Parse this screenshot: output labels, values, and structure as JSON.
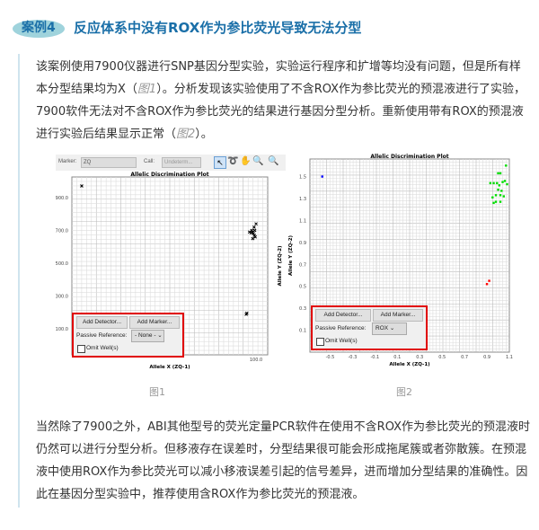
{
  "header": {
    "badge": "案例4",
    "title": "反应体系中没有ROX作为参比荧光导致无法分型"
  },
  "intro": {
    "p1": "该案例使用7900仪器进行SNP基因分型实验，实验运行程序和扩增等均没有问题，但是所有样本分型结果均为X（",
    "ref1": "图1",
    "p2": "）。分析发现该实验使用了不含ROX作为参比荧光的预混液进行了实验，7900软件无法对不含ROX作为参比荧光的结果进行基因分型分析。重新使用带有ROX的预混液进行实验后结果显示正常（",
    "ref2": "图2",
    "p3": "）。"
  },
  "figures": [
    {
      "caption": "图1",
      "toolbar": {
        "marker_label": "Marker:",
        "marker_value": "ZQ",
        "call_label": "Call:",
        "call_value": "Undeterm..."
      },
      "plot_title": "Allelic Discrimination Plot",
      "xlabel": "Allele X (ZQ-1)",
      "ylabel": "Allele Y (ZQ-2)",
      "yticks": [
        "900.0",
        "700.0",
        "500.0",
        "300.0",
        "100.0"
      ],
      "xticks": [
        "100.0"
      ],
      "panel": {
        "add_detector": "Add Detector...",
        "add_marker": "Add Marker...",
        "passive_label": "Passive Reference:",
        "passive_value": "- None -",
        "omit": "Omit Well(s)"
      },
      "chart_data": {
        "type": "scatter",
        "xlim": [
          -1023,
          171
        ],
        "ylim": [
          -59,
          1026
        ],
        "yticks": [
          900,
          700,
          500,
          300,
          100
        ],
        "xticks": [
          100
        ],
        "grid": true,
        "series": [
          {
            "color": "#000000",
            "marker": "x",
            "points": [
              [
                -963,
                971
              ],
              [
                84,
                681
              ],
              [
                79,
                690
              ],
              [
                90,
                670
              ],
              [
                74,
                700
              ],
              [
                95,
                660
              ],
              [
                70,
                685
              ],
              [
                88,
                720
              ],
              [
                100,
                740
              ],
              [
                60,
                690
              ],
              [
                80,
                650
              ],
              [
                92,
                700
              ],
              [
                40,
                188
              ],
              [
                44,
                195
              ]
            ]
          }
        ]
      }
    },
    {
      "caption": "图2",
      "plot_title": "Allelic Discrimination Plot",
      "xlabel": "Allele X (ZQ-1)",
      "ylabel": "Allele Y (ZQ-2)",
      "yticks": [
        "1.5",
        "1.3",
        "1.1",
        "0.9",
        "0.7",
        "0.5",
        "0.3",
        "0.1"
      ],
      "xticks": [
        "-0.5",
        "-0.3",
        "-0.1",
        "0.1",
        "0.3",
        "0.5",
        "0.7",
        "0.9",
        "1.1"
      ],
      "panel": {
        "add_detector": "Add Detector...",
        "add_marker": "Add Marker...",
        "passive_label": "Passive Reference:",
        "passive_value": "ROX",
        "omit": "Omit Well(s)"
      },
      "chart_data": {
        "type": "scatter",
        "xlim": [
          -0.68,
          1.1
        ],
        "ylim": [
          -0.1,
          1.66
        ],
        "yticks": [
          1.5,
          1.3,
          1.1,
          0.9,
          0.7,
          0.5,
          0.3,
          0.1
        ],
        "xticks": [
          -0.5,
          -0.3,
          -0.1,
          0.1,
          0.3,
          0.5,
          0.7,
          0.9,
          1.1
        ],
        "grid": true,
        "series": [
          {
            "color": "#0000ff",
            "points": [
              [
                -0.57,
                1.5
              ]
            ]
          },
          {
            "color": "#00dd00",
            "points": [
              [
                1.07,
                1.6
              ],
              [
                1.0,
                1.53
              ],
              [
                1.02,
                1.53
              ],
              [
                0.96,
                1.44
              ],
              [
                0.99,
                1.44
              ],
              [
                1.04,
                1.45
              ],
              [
                1.06,
                1.46
              ],
              [
                1.08,
                1.43
              ],
              [
                1.01,
                1.42
              ],
              [
                0.93,
                1.44
              ],
              [
                1.0,
                1.38
              ],
              [
                1.03,
                1.37
              ],
              [
                0.98,
                1.33
              ],
              [
                1.02,
                1.33
              ],
              [
                0.95,
                1.31
              ],
              [
                1.05,
                1.32
              ],
              [
                0.98,
                1.27
              ],
              [
                1.02,
                1.27
              ],
              [
                0.96,
                1.26
              ]
            ]
          },
          {
            "color": "#ff0000",
            "points": [
              [
                0.92,
                0.55
              ],
              [
                0.9,
                0.52
              ]
            ]
          }
        ]
      }
    }
  ],
  "outro": "当然除了7900之外，ABI其他型号的荧光定量PCR软件在使用不含ROX作为参比荧光的预混液时仍然可以进行分型分析。但移液存在误差时，分型结果很可能会形成拖尾簇或者弥散簇。在预混液中使用ROX作为参比荧光可以减小移液误差引起的信号差异，进而增加分型结果的准确性。因此在基因分型实验中，推荐使用含ROX作为参比荧光的预混液。"
}
